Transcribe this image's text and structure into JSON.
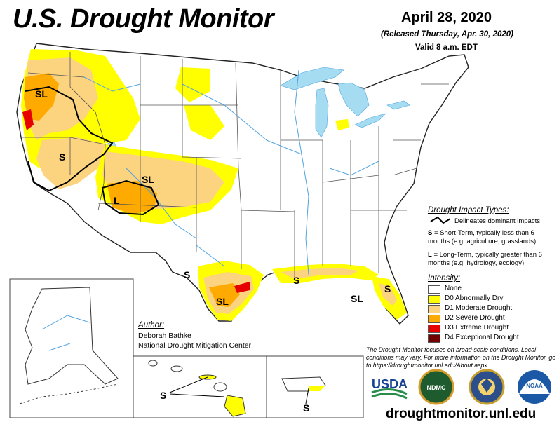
{
  "header": {
    "title": "U.S. Drought Monitor",
    "date": "April 28, 2020",
    "released": "(Released Thursday, Apr. 30, 2020)",
    "valid": "Valid 8 a.m. EDT"
  },
  "map_labels": {
    "sl_oregon": "SL",
    "s_nevada": "S",
    "sl_colorado": "SL",
    "l_utah": "L",
    "s_texas_west": "S",
    "sl_texas_south": "SL",
    "s_louisiana": "S",
    "sl_florida_panhandle": "SL",
    "s_florida": "S",
    "s_hawaii": "S",
    "s_puerto_rico": "S"
  },
  "impact_legend": {
    "heading": "Drought Impact Types:",
    "line_desc": "Delineates dominant impacts",
    "s_desc_key": "S",
    "s_desc": " = Short-Term, typically less than 6 months (e.g. agriculture, grasslands)",
    "l_desc_key": "L",
    "l_desc": " = Long-Term, typically greater than 6 months (e.g. hydrology, ecology)"
  },
  "intensity_legend": {
    "heading": "Intensity:",
    "items": [
      {
        "label": "None",
        "color": "#ffffff"
      },
      {
        "label": "D0 Abnormally Dry",
        "color": "#ffff00"
      },
      {
        "label": "D1 Moderate Drought",
        "color": "#fcd37f"
      },
      {
        "label": "D2 Severe Drought",
        "color": "#ffaa00"
      },
      {
        "label": "D3 Extreme Drought",
        "color": "#e60000"
      },
      {
        "label": "D4 Exceptional Drought",
        "color": "#730000"
      }
    ]
  },
  "author": {
    "heading": "Author:",
    "name": "Deborah Bathke",
    "org": "National Drought Mitigation Center"
  },
  "disclaimer": "The Drought Monitor focuses on broad-scale conditions. Local conditions may vary. For more information on the Drought Monitor, go to https://droughtmonitor.unl.edu/About.aspx",
  "logos": {
    "usda": "USDA",
    "ndmc": "NDMC",
    "noaa": "NOAA"
  },
  "website": "droughtmonitor.unl.edu",
  "colors": {
    "water": "#a6dcf2",
    "rivers": "#4fa3e0",
    "d0": "#ffff00",
    "d1": "#fcd37f",
    "d2": "#ffaa00",
    "d3": "#e60000"
  }
}
